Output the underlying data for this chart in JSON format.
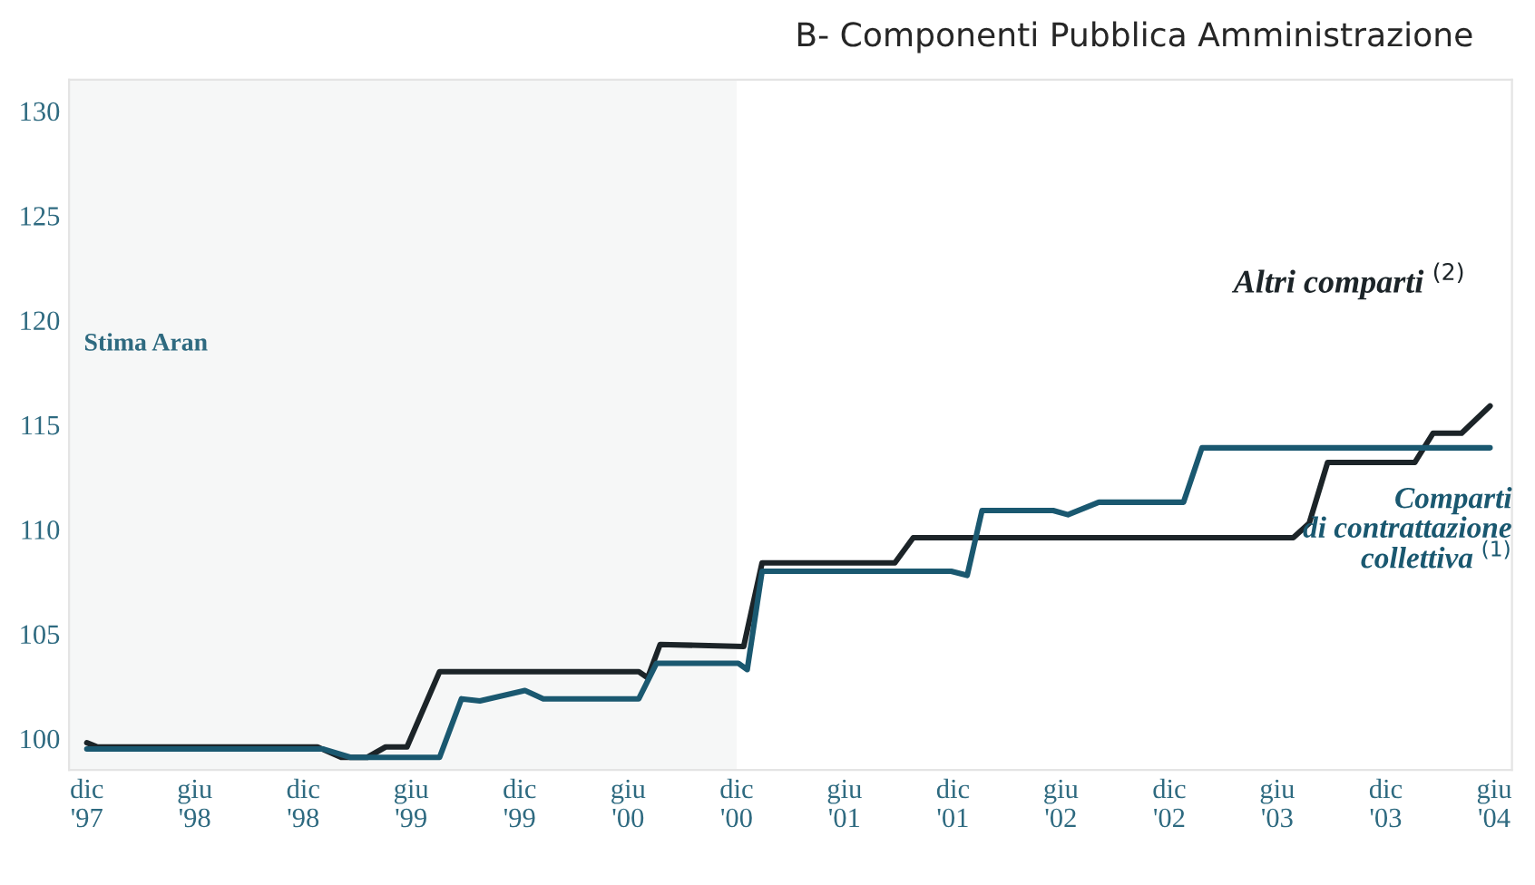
{
  "chart_data": {
    "type": "line",
    "title": "B- Componenti Pubblica Amministrazione",
    "series": [
      {
        "name": "Altri comparti $^{(2)}$",
        "color": "#1c2428",
        "x": [
          "1997-12-01",
          "1997-12-19",
          "1998-12-25",
          "1999-02-03",
          "1999-03-19",
          "1999-04-19",
          "1999-05-25",
          "1999-07-19",
          "2000-06-19",
          "2000-07-04",
          "2000-07-25",
          "2000-12-13",
          "2001-01-13",
          "2001-08-25",
          "2001-09-25",
          "2003-06-28",
          "2003-07-25",
          "2003-08-25",
          "2004-01-19",
          "2004-02-19",
          "2004-04-07",
          "2004-05-25"
        ],
        "values": [
          99.8,
          99.6,
          99.6,
          99.1,
          99.1,
          99.6,
          99.6,
          103.2,
          103.2,
          102.9,
          104.5,
          104.4,
          108.4,
          108.4,
          109.6,
          109.6,
          110.3,
          113.2,
          113.2,
          114.6,
          114.6,
          115.9
        ]
      },
      {
        "name": "Comparti\ndi contrattazione\ncollettiva $^{(1)}$",
        "color": "#1a5870",
        "x": [
          "1997-12-01",
          "1999-01-04",
          "1999-02-19",
          "1999-07-19",
          "1999-08-25",
          "1999-09-25",
          "1999-12-10",
          "2000-01-10",
          "2000-06-19",
          "2000-07-19",
          "2000-12-04",
          "2000-12-19",
          "2001-01-13",
          "2001-11-28",
          "2001-12-25",
          "2002-01-19",
          "2002-05-19",
          "2002-06-13",
          "2002-08-04",
          "2002-12-25",
          "2003-01-25",
          "2004-05-25"
        ],
        "values": [
          99.5,
          99.5,
          99.1,
          99.1,
          101.9,
          101.8,
          102.3,
          101.9,
          101.9,
          103.6,
          103.6,
          103.3,
          108.0,
          108.0,
          107.8,
          110.9,
          110.9,
          110.7,
          111.3,
          111.3,
          113.9,
          113.9
        ]
      }
    ],
    "xlim": [
      "1997-11-01",
      "2004-07-01"
    ],
    "xticks": [
      {
        "value": "1997-12-01",
        "label": "dic\n'97"
      },
      {
        "value": "1998-06-01",
        "label": "giu\n'98"
      },
      {
        "value": "1998-12-01",
        "label": "dic\n'98"
      },
      {
        "value": "1999-06-01",
        "label": "giu\n'99"
      },
      {
        "value": "1999-12-01",
        "label": "dic\n'99"
      },
      {
        "value": "2000-06-01",
        "label": "giu\n'00"
      },
      {
        "value": "2000-12-01",
        "label": "dic\n'00"
      },
      {
        "value": "2001-06-01",
        "label": "giu\n'01"
      },
      {
        "value": "2001-12-01",
        "label": "dic\n'01"
      },
      {
        "value": "2002-06-01",
        "label": "giu\n'02"
      },
      {
        "value": "2002-12-01",
        "label": "dic\n'02"
      },
      {
        "value": "2003-06-01",
        "label": "giu\n'03"
      },
      {
        "value": "2003-12-01",
        "label": "dic\n'03"
      },
      {
        "value": "2004-06-01",
        "label": "giu\n'04"
      }
    ],
    "ylim": [
      98.5,
      131.5
    ],
    "yticks": [
      100,
      105,
      110,
      115,
      120,
      125,
      130
    ],
    "bands": [
      {
        "axis": "x",
        "from": "1997-11-01",
        "to": "2000-12-01",
        "label": "Stima Aran",
        "color": "#f6f7f7"
      }
    ],
    "line_style": "solid",
    "marker": "none",
    "grid": false,
    "legend": false
  }
}
